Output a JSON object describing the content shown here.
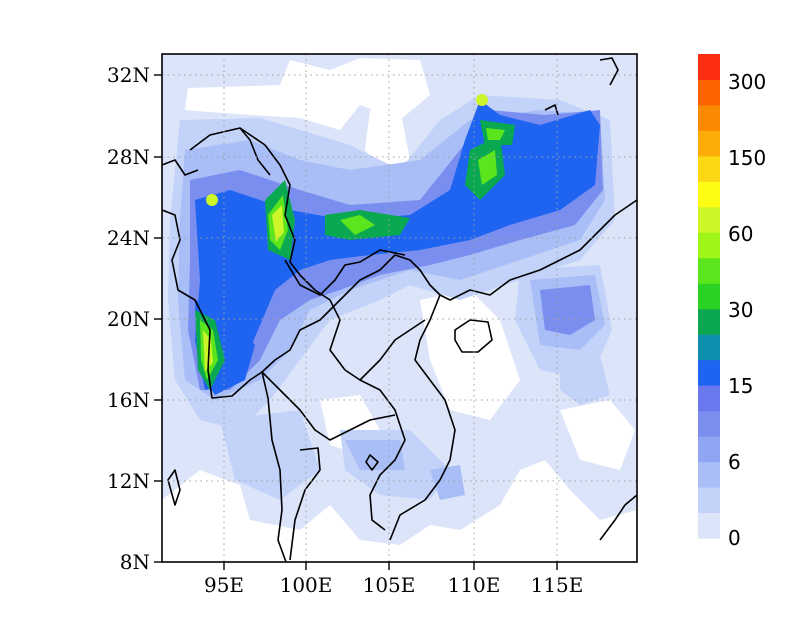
{
  "map": {
    "x_ticks": [
      "95E",
      "100E",
      "105E",
      "110E",
      "115E"
    ],
    "y_ticks": [
      "8N",
      "12N",
      "16N",
      "20N",
      "24N",
      "28N",
      "32N"
    ]
  },
  "colorbar": {
    "labels": [
      "0",
      "6",
      "15",
      "30",
      "60",
      "150",
      "300"
    ],
    "colors": [
      "#dce4fa",
      "#c3d2f8",
      "#a9bdf6",
      "#8ea5f2",
      "#7a8ef0",
      "#6a78ee",
      "#1e64f0",
      "#0f8fb0",
      "#0aa850",
      "#2ad224",
      "#5be51c",
      "#9ef51a",
      "#ccf52a",
      "#fcfc14",
      "#fcd814",
      "#fcac08",
      "#fc8a00",
      "#fc6400",
      "#fc2d10"
    ]
  },
  "colors": {
    "background_field": "#dce4fa",
    "coastline": "#000000",
    "grid": "#a0a0a0"
  }
}
